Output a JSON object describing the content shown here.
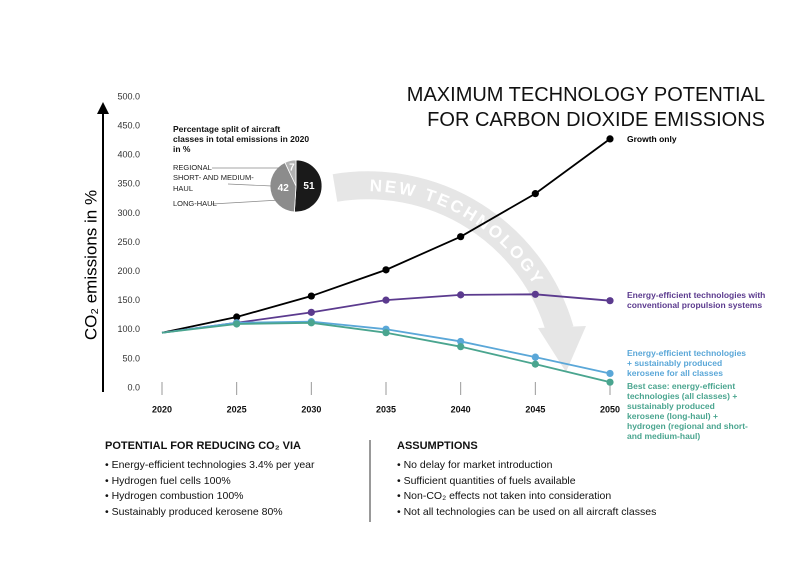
{
  "chart_data": [
    {
      "type": "line",
      "title": [
        "MAXIMUM TECHNOLOGY POTENTIAL",
        "FOR CARBON DIOXIDE EMISSIONS"
      ],
      "y_label": "CO₂ emissions in %",
      "annotation": "NEW TECHNOLOGY",
      "x": [
        2020,
        2025,
        2030,
        2035,
        2040,
        2045,
        2050
      ],
      "xlim": [
        2020,
        2050
      ],
      "xticks": [
        2020,
        2025,
        2030,
        2035,
        2040,
        2045,
        2050
      ],
      "ylim": [
        0,
        500
      ],
      "yticks": [
        {
          "value": 0,
          "label": "0.0"
        },
        {
          "value": 50,
          "label": "50.0"
        },
        {
          "value": 100,
          "label": "100.0"
        },
        {
          "value": 150,
          "label": "150.0"
        },
        {
          "value": 200,
          "label": "200.0"
        },
        {
          "value": 250,
          "label": "250.0"
        },
        {
          "value": 300,
          "label": "300.0"
        },
        {
          "value": 350,
          "label": "350.0"
        },
        {
          "value": 400,
          "label": "400.0"
        },
        {
          "value": 450,
          "label": "450.0"
        },
        {
          "value": 500,
          "label": "500.0"
        }
      ],
      "series": [
        {
          "name": "Growth only",
          "color": "#000000",
          "values": [
            95,
            122,
            158,
            203,
            260,
            334,
            428
          ]
        },
        {
          "name": "Energy-efficient technologies with conventional propulsion systems",
          "color": "#5b3a8e",
          "values": [
            95,
            112,
            130,
            151,
            160,
            161,
            150
          ]
        },
        {
          "name": "Energy-efficient technologies + sustainably produced kerosene for all classes",
          "color": "#5aa7d8",
          "values": [
            95,
            112,
            114,
            101,
            80,
            53,
            25
          ]
        },
        {
          "name": "Best case: energy-efficient technologies (all classes) + sustainably produced kerosene (long-haul) + hydrogen (regional and short- and medium-haul)",
          "color": "#4aa58f",
          "values": [
            95,
            110,
            112,
            95,
            71,
            41,
            10
          ]
        }
      ]
    },
    {
      "type": "pie",
      "title": "Percentage split of aircraft classes in total emissions in 2020 in %",
      "categories": [
        "REGIONAL",
        "SHORT- AND MEDIUM-HAUL",
        "LONG-HAUL"
      ],
      "values": [
        7,
        51,
        42
      ],
      "colors": [
        "#b3b3b3",
        "#1a1a1a",
        "#8c8c8c"
      ]
    }
  ],
  "potential": {
    "heading": "POTENTIAL FOR REDUCING CO₂ VIA",
    "items": [
      "Energy-efficient technologies 3.4% per year",
      "Hydrogen fuel cells 100%",
      "Hydrogen combustion 100%",
      "Sustainably produced kerosene 80%"
    ]
  },
  "assumptions": {
    "heading": "ASSUMPTIONS",
    "items": [
      "No delay for market introduction",
      "Sufficient quantities of fuels available",
      "Non-CO₂ effects not taken into consideration",
      "Not all technologies can be used on all aircraft classes"
    ]
  }
}
